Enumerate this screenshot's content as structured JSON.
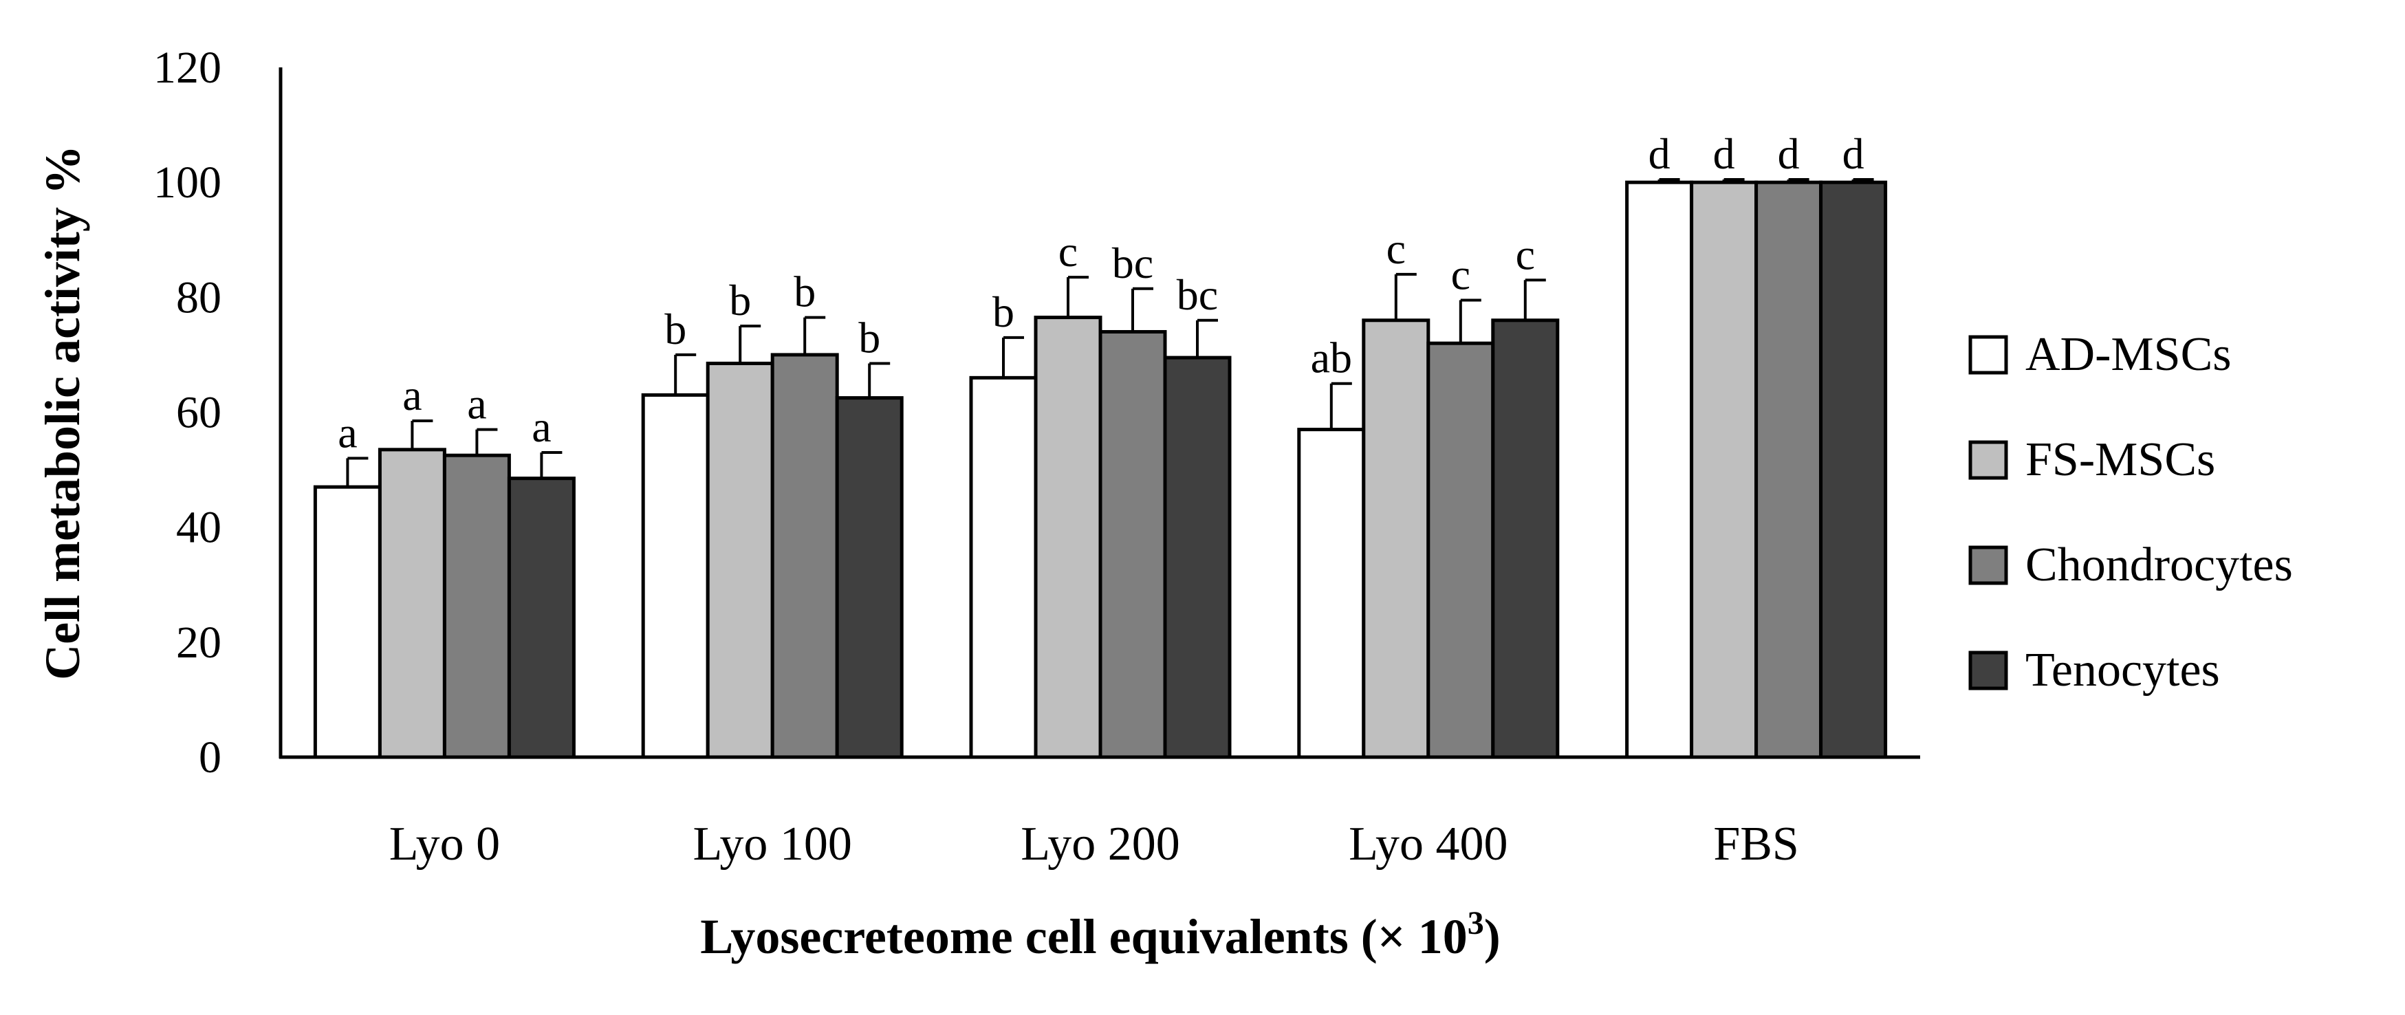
{
  "chart_data": {
    "type": "bar",
    "title": "",
    "ylabel": "Cell metabolic activity %",
    "xlabel_main": "Lyosecreteome cell equivalents (× 10",
    "xlabel_sup": "3",
    "xlabel_close": ")",
    "ylim": [
      0,
      120
    ],
    "yticks": [
      0,
      20,
      40,
      60,
      80,
      100,
      120
    ],
    "grid": false,
    "legend_position": "right",
    "categories": [
      "Lyo 0",
      "Lyo 100",
      "Lyo 200",
      "Lyo 400",
      "FBS"
    ],
    "series": [
      {
        "name": "AD-MSCs",
        "color": "#ffffff",
        "values": [
          47,
          63,
          66,
          57,
          100
        ],
        "errors": [
          5,
          7,
          7,
          8,
          0.5
        ],
        "letters": [
          "a",
          "b",
          "b",
          "ab",
          "d"
        ]
      },
      {
        "name": "FS-MSCs",
        "color": "#bfbfbf",
        "values": [
          53.5,
          68.5,
          76.5,
          76,
          100
        ],
        "errors": [
          5,
          6.5,
          7,
          8,
          0.5
        ],
        "letters": [
          "a",
          "b",
          "c",
          "c",
          "d"
        ]
      },
      {
        "name": "Chondrocytes",
        "color": "#7f7f7f",
        "values": [
          52.5,
          70,
          74,
          72,
          100
        ],
        "errors": [
          4.5,
          6.5,
          7.5,
          7.5,
          0.5
        ],
        "letters": [
          "a",
          "b",
          "bc",
          "c",
          "d"
        ]
      },
      {
        "name": "Tenocytes",
        "color": "#404040",
        "values": [
          48.5,
          62.5,
          69.5,
          76,
          100
        ],
        "errors": [
          4.5,
          6,
          6.5,
          7,
          0.5
        ],
        "letters": [
          "a",
          "b",
          "bc",
          "c",
          "d"
        ]
      }
    ]
  }
}
